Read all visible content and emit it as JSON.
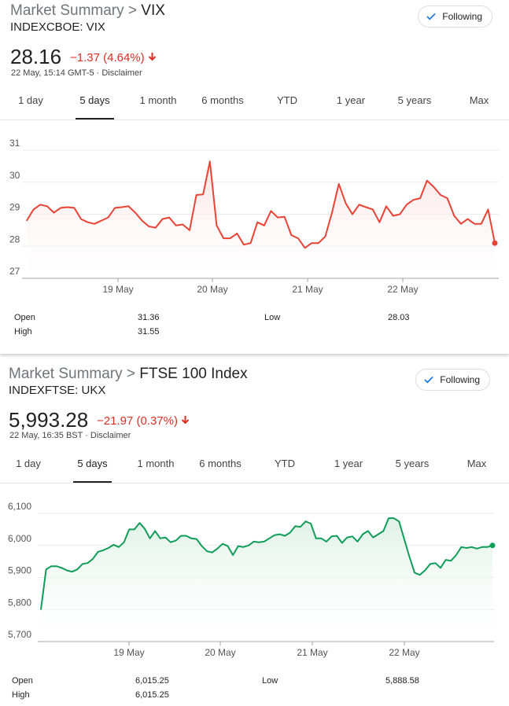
{
  "cards": [
    {
      "title_prefix": "Market Summary",
      "title_sep": " > ",
      "title_name": "VIX",
      "symbol": "INDEXCBOE: VIX",
      "follow_label": "Following",
      "price": "28.16",
      "change": "−1.37 (4.64%)",
      "meta": "22 May, 15:14 GMT-5 · Disclaimer",
      "tabs": [
        "1 day",
        "5 days",
        "1 month",
        "6 months",
        "YTD",
        "1 year",
        "5 years",
        "Max"
      ],
      "selected_tab": "5 days",
      "stats": {
        "open_label": "Open",
        "open": "31.36",
        "high_label": "High",
        "high": "31.55",
        "low_label": "Low",
        "low": "28.03"
      }
    },
    {
      "title_prefix": "Market Summary",
      "title_sep": " > ",
      "title_name": "FTSE 100 Index",
      "symbol": "INDEXFTSE: UKX",
      "follow_label": "Following",
      "price": "5,993.28",
      "change": "−21.97 (0.37%)",
      "meta": "22 May, 16:35 BST · Disclaimer",
      "tabs": [
        "1 day",
        "5 days",
        "1 month",
        "6 months",
        "YTD",
        "1 year",
        "5 years",
        "Max"
      ],
      "selected_tab": "5 days",
      "stats": {
        "open_label": "Open",
        "open": "6,015.25",
        "high_label": "High",
        "high": "6,015.25",
        "low_label": "Low",
        "low": "5,888.58"
      }
    }
  ],
  "colors": {
    "vix_line": "#ea4335",
    "vix_fill": "#fbe2e2",
    "ftse_line": "#0f9d58",
    "ftse_fill": "#dff1e6",
    "down": "#d93025",
    "grid": "#9aa0a6"
  },
  "chart_data": [
    {
      "type": "line",
      "title": "VIX",
      "x_tick_labels": [
        "19 May",
        "20 May",
        "21 May",
        "22 May"
      ],
      "y_ticks": [
        "27",
        "28",
        "29",
        "30",
        "31"
      ],
      "ylim": [
        27,
        31
      ],
      "grid": true,
      "series": [
        {
          "values": [
            28.8,
            29.15,
            29.3,
            29.25,
            29.05,
            29.2,
            29.22,
            29.2,
            28.85,
            28.75,
            28.7,
            28.8,
            28.9,
            29.2,
            29.22,
            29.25,
            29.05,
            28.8,
            28.62,
            28.58,
            28.85,
            28.9,
            28.65,
            28.68,
            28.5,
            29.6,
            29.62,
            30.65,
            28.65,
            28.25,
            28.25,
            28.4,
            28.05,
            28.1,
            28.75,
            28.65,
            29.1,
            28.9,
            28.92,
            28.35,
            28.25,
            27.95,
            28.1,
            28.1,
            28.3,
            29.05,
            29.95,
            29.35,
            29.0,
            29.3,
            29.22,
            29.15,
            28.75,
            29.25,
            28.95,
            29.0,
            29.3,
            29.45,
            29.5,
            30.05,
            29.85,
            29.6,
            29.5,
            28.95,
            28.7,
            28.85,
            28.7,
            28.7,
            29.15,
            28.1
          ]
        }
      ]
    },
    {
      "type": "area",
      "title": "FTSE 100 Index",
      "x_tick_labels": [
        "19 May",
        "20 May",
        "21 May",
        "22 May"
      ],
      "y_ticks": [
        "5,700",
        "5,800",
        "5,900",
        "6,000",
        "6,100"
      ],
      "ylim": [
        5700,
        6100
      ],
      "grid": true,
      "series": [
        {
          "values": [
            5800,
            5925,
            5935,
            5935,
            5930,
            5922,
            5918,
            5925,
            5942,
            5945,
            5958,
            5980,
            5985,
            5992,
            6002,
            5995,
            6010,
            6050,
            6050,
            6070,
            6052,
            6022,
            6045,
            6022,
            6025,
            6010,
            6015,
            6030,
            6030,
            6022,
            6020,
            5998,
            5982,
            5978,
            5990,
            6005,
            5998,
            5970,
            5998,
            5995,
            6000,
            6012,
            6010,
            6012,
            6022,
            6032,
            6035,
            6030,
            6040,
            6060,
            6058,
            6075,
            6068,
            6022,
            6022,
            6012,
            6028,
            6030,
            6008,
            6025,
            6028,
            6012,
            6035,
            6045,
            6025,
            6035,
            6045,
            6085,
            6085,
            6075,
            6020,
            5965,
            5915,
            5908,
            5922,
            5942,
            5945,
            5930,
            5955,
            5952,
            5970,
            5995,
            5992,
            5995,
            5990,
            5995,
            5995,
            6000
          ]
        }
      ]
    }
  ]
}
